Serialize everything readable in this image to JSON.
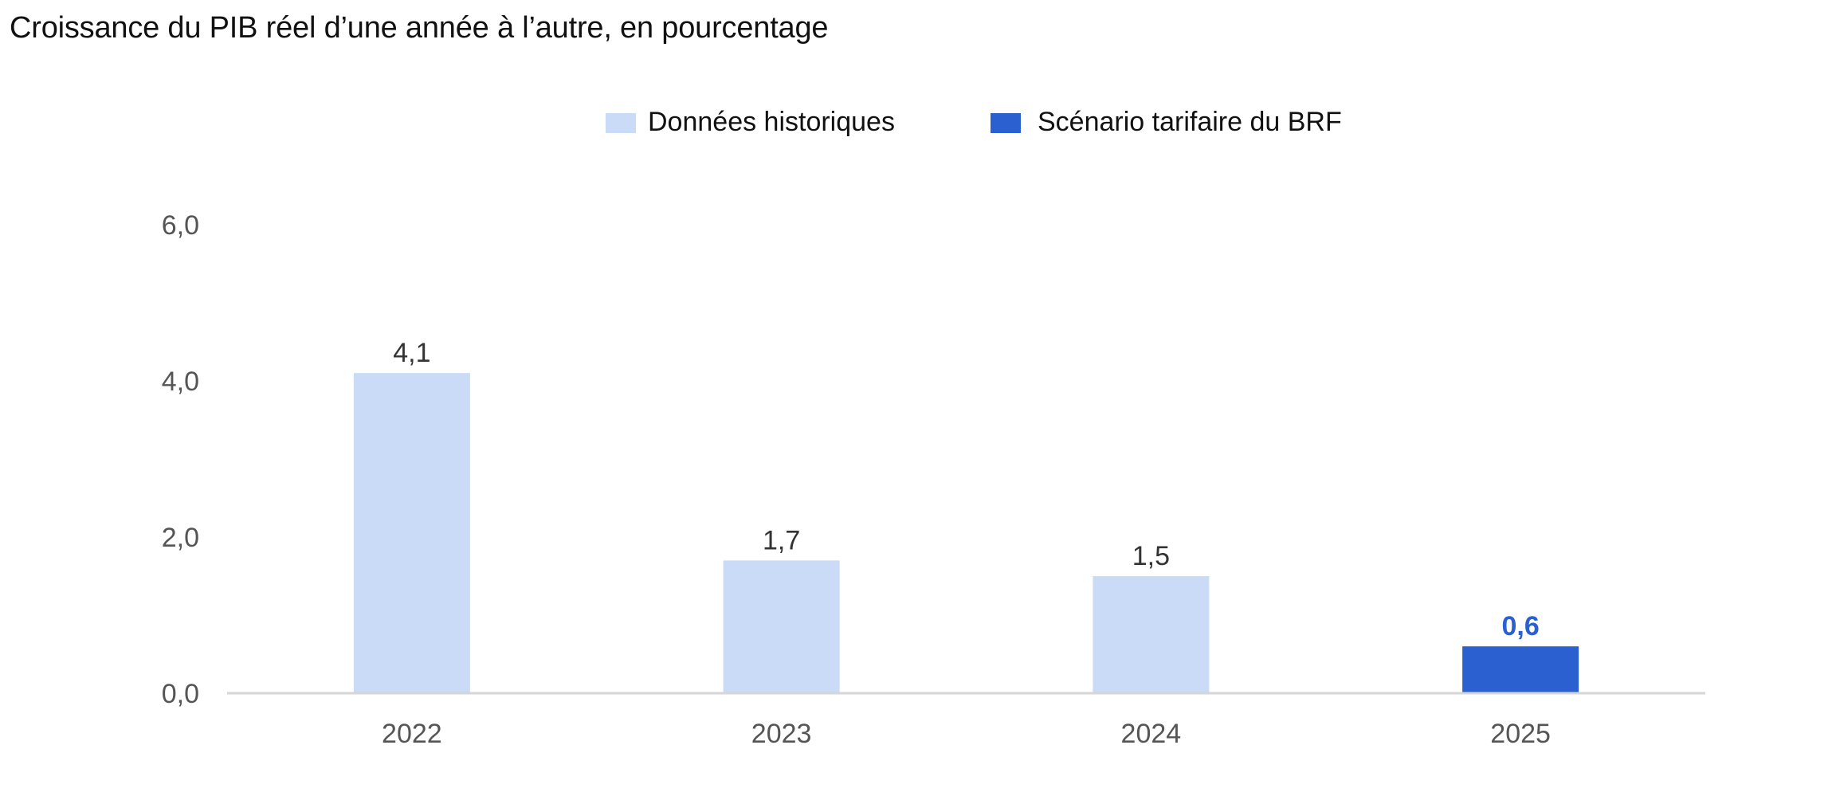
{
  "chart_data": {
    "type": "bar",
    "title": "Croissance du PIB réel d’une année à l’autre, en pourcentage",
    "xlabel": "",
    "ylabel": "",
    "categories": [
      "2022",
      "2023",
      "2024",
      "2025"
    ],
    "values": [
      4.1,
      1.7,
      1.5,
      0.6
    ],
    "value_labels": [
      "4,1",
      "1,7",
      "1,5",
      "0,6"
    ],
    "bar_series": [
      "historical",
      "historical",
      "historical",
      "scenario"
    ],
    "series": [
      {
        "id": "historical",
        "name": "Données historiques",
        "color": "#c9dbf6"
      },
      {
        "id": "scenario",
        "name": "Scénario tarifaire du BRF",
        "color": "#2b60d0"
      }
    ],
    "ylim": [
      0,
      6
    ],
    "yticks": [
      0,
      2,
      4,
      6
    ],
    "ytick_labels": [
      "0,0",
      "2,0",
      "4,0",
      "6,0"
    ],
    "grid": false,
    "legend_position": "top-center"
  }
}
